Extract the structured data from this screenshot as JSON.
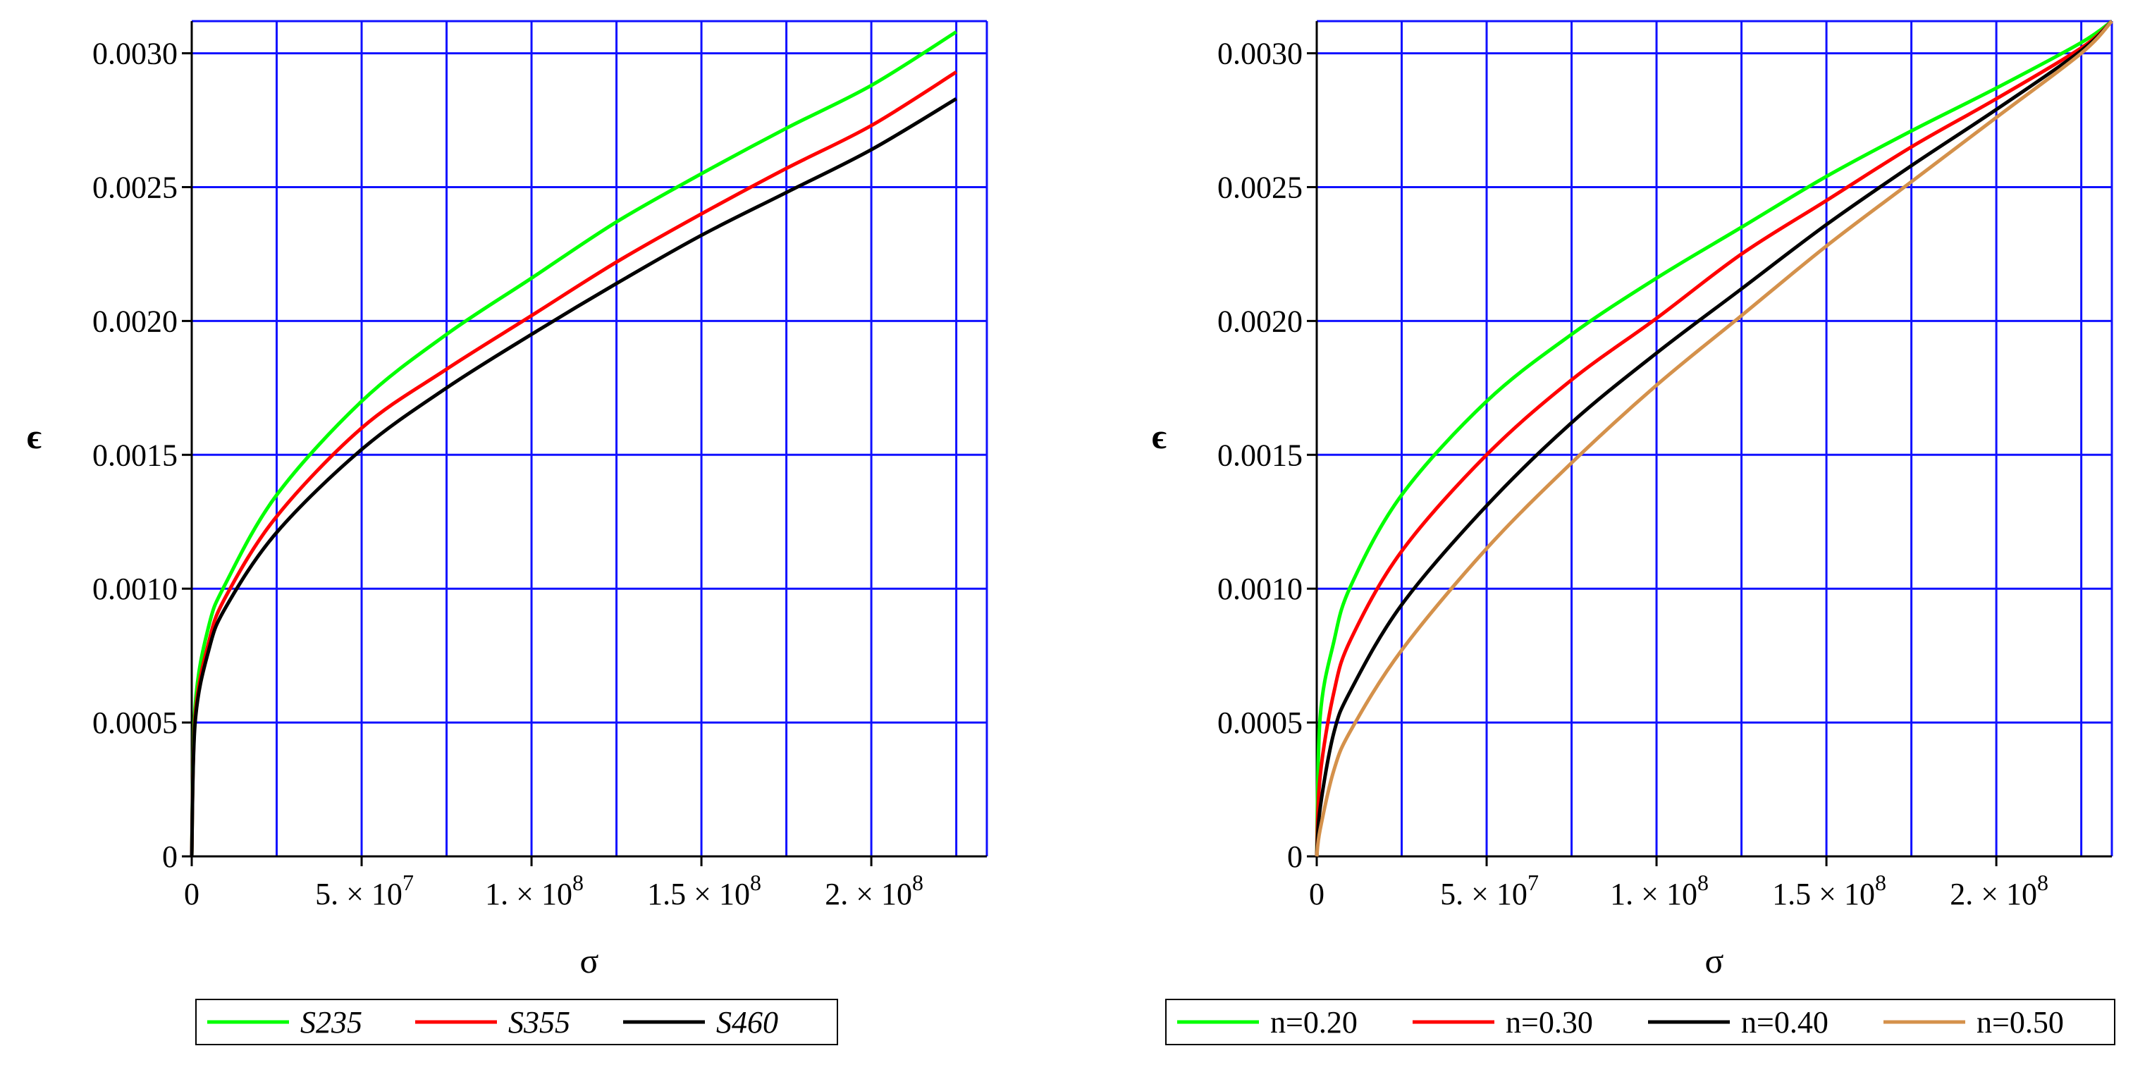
{
  "chart_data": [
    {
      "type": "line",
      "xlabel": "σ",
      "ylabel": "ϵ",
      "xlim": [
        0,
        234000000
      ],
      "ylim": [
        0,
        0.00312
      ],
      "grid": true,
      "x_ticks": [
        {
          "value": 0,
          "base": "0",
          "exp": ""
        },
        {
          "value": 50000000,
          "base": "5. × 10",
          "exp": "7"
        },
        {
          "value": 100000000,
          "base": "1. × 10",
          "exp": "8"
        },
        {
          "value": 150000000,
          "base": "1.5 × 10",
          "exp": "8"
        },
        {
          "value": 200000000,
          "base": "2. × 10",
          "exp": "8"
        }
      ],
      "y_ticks": [
        "0",
        "0.0005",
        "0.0010",
        "0.0015",
        "0.0020",
        "0.0025",
        "0.0030"
      ],
      "legend_position": "bottom",
      "legend_italic": true,
      "series": [
        {
          "name": "S235",
          "color": "#00ff00",
          "x": [
            0,
            1000000,
            5000000,
            10000000,
            25000000,
            50000000,
            75000000,
            100000000,
            125000000,
            150000000,
            175000000,
            200000000,
            225000000
          ],
          "y": [
            0,
            0.00056,
            0.00086,
            0.00102,
            0.00135,
            0.0017,
            0.00195,
            0.00216,
            0.00237,
            0.00255,
            0.00272,
            0.00288,
            0.00308
          ]
        },
        {
          "name": "S355",
          "color": "#ff0000",
          "x": [
            0,
            1000000,
            5000000,
            10000000,
            25000000,
            50000000,
            75000000,
            100000000,
            125000000,
            150000000,
            175000000,
            200000000,
            225000000
          ],
          "y": [
            0,
            0.00052,
            0.0008,
            0.00097,
            0.00127,
            0.0016,
            0.00182,
            0.00202,
            0.00222,
            0.0024,
            0.00257,
            0.00273,
            0.00293
          ]
        },
        {
          "name": "S460",
          "color": "#000000",
          "x": [
            0,
            1000000,
            5000000,
            10000000,
            25000000,
            50000000,
            75000000,
            100000000,
            125000000,
            150000000,
            175000000,
            200000000,
            225000000
          ],
          "y": [
            0,
            0.0005,
            0.00077,
            0.00093,
            0.00121,
            0.00152,
            0.00175,
            0.00195,
            0.00214,
            0.00232,
            0.00248,
            0.00264,
            0.00283
          ]
        }
      ]
    },
    {
      "type": "line",
      "xlabel": "σ",
      "ylabel": "ϵ",
      "xlim": [
        0,
        234000000
      ],
      "ylim": [
        0,
        0.00312
      ],
      "grid": true,
      "x_ticks": [
        {
          "value": 0,
          "base": "0",
          "exp": ""
        },
        {
          "value": 50000000,
          "base": "5. × 10",
          "exp": "7"
        },
        {
          "value": 100000000,
          "base": "1. × 10",
          "exp": "8"
        },
        {
          "value": 150000000,
          "base": "1.5 × 10",
          "exp": "8"
        },
        {
          "value": 200000000,
          "base": "2. × 10",
          "exp": "8"
        }
      ],
      "y_ticks": [
        "0",
        "0.0005",
        "0.0010",
        "0.0015",
        "0.0020",
        "0.0025",
        "0.0030"
      ],
      "legend_position": "bottom",
      "legend_italic": false,
      "series": [
        {
          "name": "n=0.20",
          "color": "#00ff00",
          "x": [
            0,
            1000000,
            5000000,
            10000000,
            25000000,
            50000000,
            75000000,
            100000000,
            125000000,
            150000000,
            175000000,
            200000000,
            225000000,
            234000000
          ],
          "y": [
            0,
            0.00052,
            0.0008,
            0.00101,
            0.00135,
            0.0017,
            0.00195,
            0.00216,
            0.00235,
            0.00254,
            0.00271,
            0.00287,
            0.00304,
            0.00312
          ]
        },
        {
          "name": "n=0.30",
          "color": "#ff0000",
          "x": [
            0,
            1000000,
            5000000,
            10000000,
            25000000,
            50000000,
            75000000,
            100000000,
            125000000,
            150000000,
            175000000,
            200000000,
            225000000,
            234000000
          ],
          "y": [
            0,
            0.0003,
            0.00061,
            0.00081,
            0.00114,
            0.0015,
            0.00178,
            0.00201,
            0.00225,
            0.00245,
            0.00265,
            0.00283,
            0.00302,
            0.00312
          ]
        },
        {
          "name": "n=0.40",
          "color": "#000000",
          "x": [
            0,
            1000000,
            5000000,
            10000000,
            25000000,
            50000000,
            75000000,
            100000000,
            125000000,
            150000000,
            175000000,
            200000000,
            225000000,
            234000000
          ],
          "y": [
            0,
            0.00018,
            0.00046,
            0.00062,
            0.00094,
            0.00131,
            0.00162,
            0.00188,
            0.00212,
            0.00236,
            0.00258,
            0.00279,
            0.00301,
            0.00312
          ]
        },
        {
          "name": "n=0.50",
          "color": "#d4914b",
          "x": [
            0,
            1000000,
            5000000,
            10000000,
            25000000,
            50000000,
            75000000,
            100000000,
            125000000,
            150000000,
            175000000,
            200000000,
            225000000,
            234000000
          ],
          "y": [
            0,
            0.0001,
            0.00032,
            0.00047,
            0.00077,
            0.00115,
            0.00147,
            0.00176,
            0.00202,
            0.00228,
            0.00252,
            0.00276,
            0.003,
            0.00312
          ]
        }
      ]
    }
  ]
}
